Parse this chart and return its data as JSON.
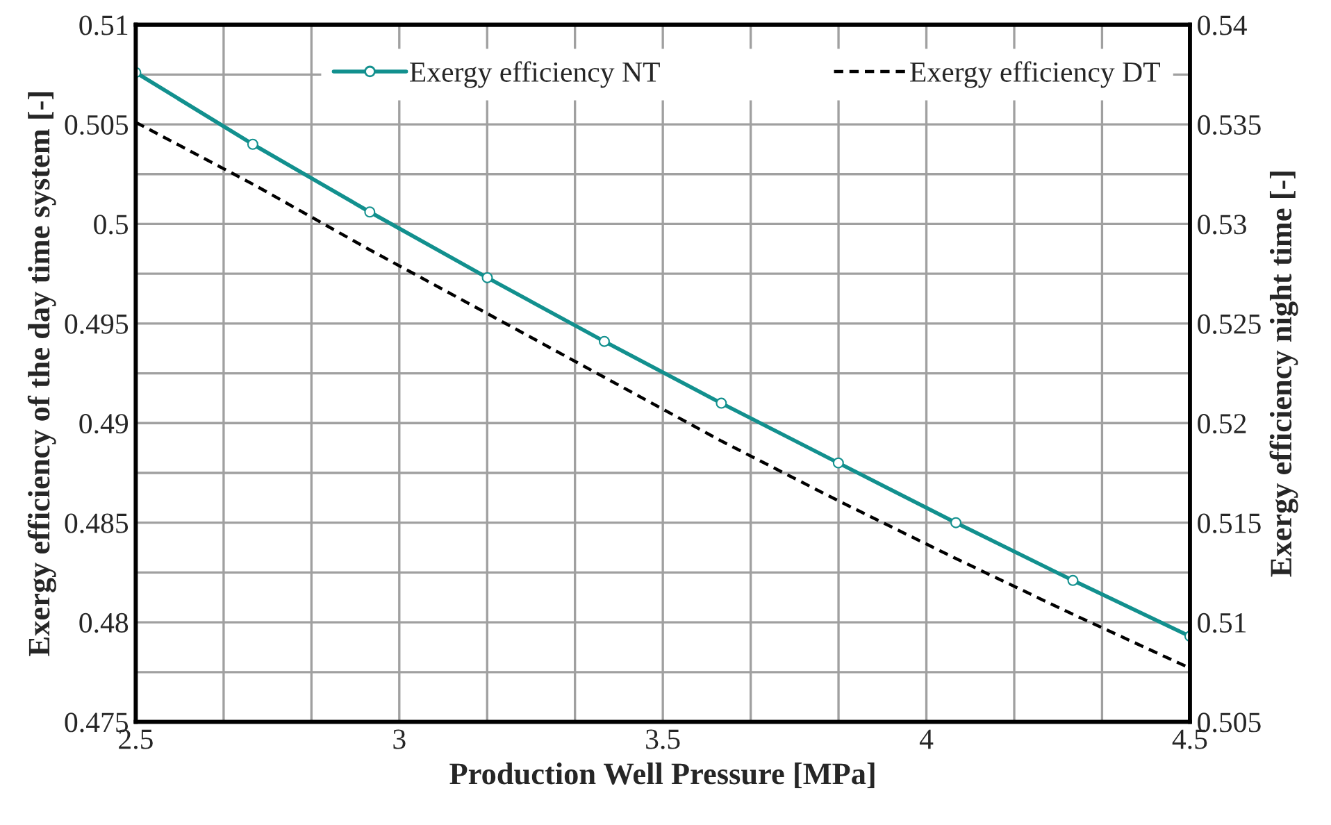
{
  "chart_data": {
    "type": "line",
    "xlabel": "Production Well Pressure [MPa]",
    "ylabel": "Exergy efficiency of the day time system [-]",
    "y2label": "Exergy efficiency night time [-]",
    "x": [
      2.5,
      2.722,
      2.944,
      3.167,
      3.389,
      3.611,
      3.833,
      4.056,
      4.278,
      4.5
    ],
    "series": [
      {
        "name": "Exergy efficiency NT",
        "color": "#12908e",
        "axis": "y2",
        "marker": "circle",
        "line_style": "solid",
        "values": [
          0.5376,
          0.534,
          0.5306,
          0.5273,
          0.5241,
          0.521,
          0.518,
          0.515,
          0.5121,
          0.5093
        ]
      },
      {
        "name": "Exergy efficiency DT",
        "color": "#000000",
        "axis": "y",
        "marker": "none",
        "line_style": "dashed",
        "values": [
          0.5051,
          0.502,
          0.4987,
          0.4955,
          0.4923,
          0.4891,
          0.4861,
          0.4832,
          0.4804,
          0.4777
        ]
      }
    ],
    "xlim": [
      2.5,
      4.5
    ],
    "xticks": [
      2.5,
      {
        "value": 2.6667,
        "label": null
      },
      {
        "value": 2.8333,
        "label": null
      },
      3,
      {
        "value": 3.1667,
        "label": null
      },
      {
        "value": 3.3333,
        "label": null
      },
      3.5,
      {
        "value": 3.6667,
        "label": null
      },
      {
        "value": 3.8333,
        "label": null
      },
      4,
      {
        "value": 4.1667,
        "label": null
      },
      {
        "value": 4.3333,
        "label": null
      },
      4.5
    ],
    "ylim": [
      0.475,
      0.51
    ],
    "yticks": [
      0.475,
      {
        "value": 0.4775,
        "label": null
      },
      0.48,
      {
        "value": 0.4825,
        "label": null
      },
      0.485,
      {
        "value": 0.4875,
        "label": null
      },
      0.49,
      {
        "value": 0.4925,
        "label": null
      },
      0.495,
      {
        "value": 0.4975,
        "label": null
      },
      0.5,
      {
        "value": 0.5025,
        "label": null
      },
      0.505,
      {
        "value": 0.5075,
        "label": null
      },
      0.51
    ],
    "y2lim": [
      0.505,
      0.54
    ],
    "y2ticks": [
      0.505,
      0.51,
      0.515,
      0.52,
      0.525,
      0.53,
      0.535,
      0.54
    ],
    "grid": true,
    "legend": "top"
  }
}
